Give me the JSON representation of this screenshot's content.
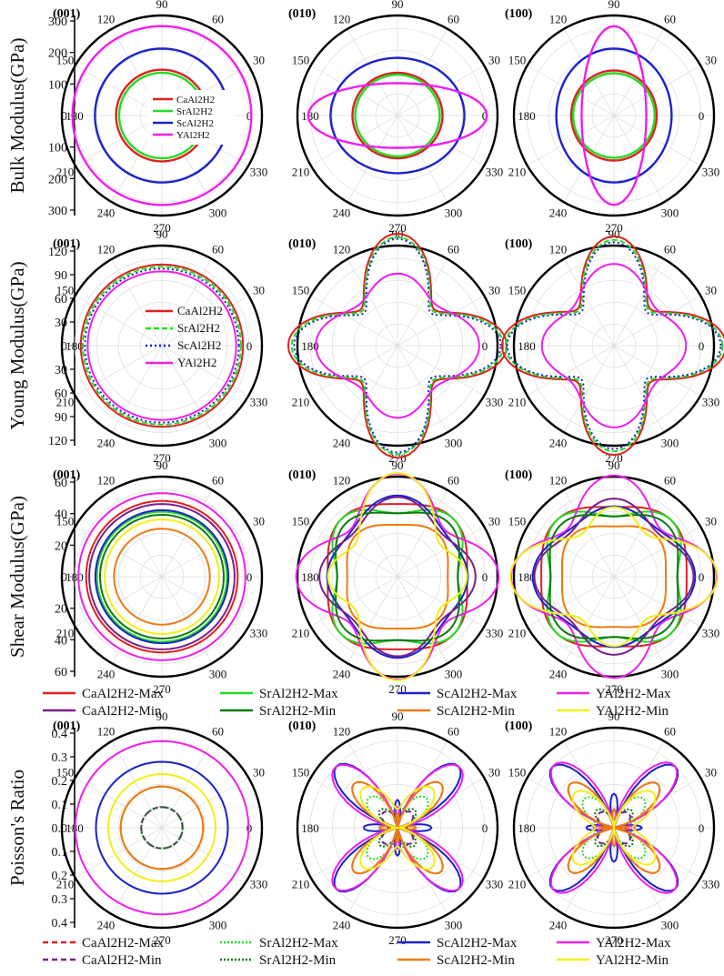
{
  "figure": {
    "angle_labels": [
      "0",
      "30",
      "60",
      "90",
      "120",
      "150",
      "180",
      "210",
      "240",
      "270",
      "300",
      "330"
    ],
    "panel_labels": [
      "(001)",
      "(010)",
      "(100)"
    ]
  },
  "colors": {
    "CaAl2H2": "#e02020",
    "SrAl2H2": "#22dd22",
    "ScAl2H2": "#1a22cc",
    "YAl2H2": "#ee1fee",
    "CaAl2H2_min": "#7a1f8a",
    "SrAl2H2_min": "#0a7a0a",
    "ScAl2H2_min": "#f07a10",
    "YAl2H2_min": "#f2ef16"
  },
  "chart_data": [
    {
      "type": "polar",
      "ylabel": "Bulk Modulus(GPa)",
      "axis_ticks": [
        "300",
        "200",
        "100",
        "0",
        "100",
        "200",
        "300"
      ],
      "rmax": 330,
      "legend": [
        "CaAl2H2",
        "SrAl2H2",
        "ScAl2H2",
        "YAl2H2"
      ],
      "panels": [
        {
          "plane": "(001)",
          "series": [
            {
              "name": "CaAl2H2",
              "r0": 163
            },
            {
              "name": "SrAl2H2",
              "r0": 152
            },
            {
              "name": "ScAl2H2",
              "r0": 238
            },
            {
              "name": "YAl2H2",
              "r0": 318
            }
          ]
        },
        {
          "plane": "(010)",
          "series": [
            {
              "name": "CaAl2H2",
              "a": 160,
              "b": 152
            },
            {
              "name": "SrAl2H2",
              "a": 150,
              "b": 145
            },
            {
              "name": "ScAl2H2",
              "a": 238,
              "b": 205
            },
            {
              "name": "YAl2H2",
              "a": 318,
              "b": 115
            }
          ]
        },
        {
          "plane": "(100)",
          "series": [
            {
              "name": "CaAl2H2",
              "a": 152,
              "b": 160
            },
            {
              "name": "SrAl2H2",
              "a": 145,
              "b": 150
            },
            {
              "name": "ScAl2H2",
              "a": 205,
              "b": 238
            },
            {
              "name": "YAl2H2",
              "a": 115,
              "b": 318
            }
          ]
        }
      ]
    },
    {
      "type": "polar",
      "ylabel": "Young Modulus(GPa)",
      "axis_ticks": [
        "120",
        "90",
        "60",
        "30",
        "0",
        "30",
        "60",
        "90",
        "120"
      ],
      "rmax": 135,
      "legend": [
        "CaAl2H2",
        "SrAl2H2",
        "ScAl2H2",
        "YAl2H2"
      ],
      "panels": [
        {
          "plane": "(001)",
          "series": [
            {
              "name": "CaAl2H2",
              "r0": 118
            },
            {
              "name": "SrAl2H2",
              "r0": 115
            },
            {
              "name": "ScAl2H2",
              "r0": 112
            },
            {
              "name": "YAl2H2",
              "r0": 108
            }
          ]
        },
        {
          "plane": "(010)",
          "series": [
            {
              "name": "CaAl2H2",
              "a0": 116,
              "a90": 120,
              "a45": 75
            },
            {
              "name": "SrAl2H2",
              "a0": 112,
              "a90": 116,
              "a45": 72
            },
            {
              "name": "ScAl2H2",
              "a0": 108,
              "a90": 113,
              "a45": 68
            },
            {
              "name": "YAl2H2",
              "a0": 104,
              "a90": 90,
              "a45": 82
            }
          ]
        },
        {
          "plane": "(100)",
          "series": [
            {
              "name": "CaAl2H2",
              "a0": 120,
              "a90": 116,
              "a45": 75
            },
            {
              "name": "SrAl2H2",
              "a0": 116,
              "a90": 112,
              "a45": 72
            },
            {
              "name": "ScAl2H2",
              "a0": 113,
              "a90": 108,
              "a45": 68
            },
            {
              "name": "YAl2H2",
              "a0": 90,
              "a90": 104,
              "a45": 82
            }
          ]
        }
      ]
    },
    {
      "type": "polar",
      "ylabel": "Shear Modulus(GPa)",
      "axis_ticks": [
        "60",
        "40",
        "20",
        "0",
        "20",
        "40",
        "60"
      ],
      "rmax": 60,
      "legend": [
        "CaAl2H2-Max",
        "SrAl2H2-Max",
        "ScAl2H2-Max",
        "YAl2H2-Max",
        "CaAl2H2-Min",
        "SrAl2H2-Min",
        "ScAl2H2-Min",
        "YAl2H2-Min"
      ],
      "panels": [
        {
          "plane": "(001)",
          "series": [
            {
              "name": "CaAl2H2-Max",
              "r0": 49
            },
            {
              "name": "SrAl2H2-Max",
              "r0": 42
            },
            {
              "name": "ScAl2H2-Max",
              "r0": 43
            },
            {
              "name": "YAl2H2-Max",
              "r0": 54
            },
            {
              "name": "CaAl2H2-Min",
              "r0": 47
            },
            {
              "name": "SrAl2H2-Min",
              "r0": 40
            },
            {
              "name": "ScAl2H2-Min",
              "r0": 31
            },
            {
              "name": "YAl2H2-Min",
              "r0": 37
            }
          ]
        },
        {
          "plane": "(010)",
          "series": [
            {
              "name": "CaAl2H2-Max",
              "a0": 48,
              "a90": 50,
              "a45": 52
            },
            {
              "name": "SrAl2H2-Max",
              "a0": 45,
              "a90": 47,
              "a45": 52
            },
            {
              "name": "ScAl2H2-Max",
              "a0": 42,
              "a90": 49,
              "a45": 42
            },
            {
              "name": "YAl2H2-Max",
              "a0": 54,
              "a90": 55,
              "a45": 43
            },
            {
              "name": "CaAl2H2-Min",
              "a0": 45,
              "a90": 46,
              "a45": 40
            },
            {
              "name": "SrAl2H2-Min",
              "a0": 43,
              "a90": 45,
              "a45": 48
            },
            {
              "name": "ScAl2H2-Min",
              "a0": 35,
              "a90": 36,
              "a45": 38
            },
            {
              "name": "YAl2H2-Min",
              "a0": 35,
              "a90": 57,
              "a45": 36
            }
          ]
        },
        {
          "plane": "(100)",
          "series": [
            {
              "name": "CaAl2H2-Max",
              "a0": 50,
              "a90": 48,
              "a45": 52
            },
            {
              "name": "SrAl2H2-Max",
              "a0": 47,
              "a90": 45,
              "a45": 52
            },
            {
              "name": "ScAl2H2-Max",
              "a0": 49,
              "a90": 42,
              "a45": 42
            },
            {
              "name": "YAl2H2-Max",
              "a0": 55,
              "a90": 54,
              "a45": 43
            },
            {
              "name": "CaAl2H2-Min",
              "a0": 46,
              "a90": 45,
              "a45": 40
            },
            {
              "name": "SrAl2H2-Min",
              "a0": 45,
              "a90": 43,
              "a45": 48
            },
            {
              "name": "ScAl2H2-Min",
              "a0": 36,
              "a90": 35,
              "a45": 38
            },
            {
              "name": "YAl2H2-Min",
              "a0": 57,
              "a90": 35,
              "a45": 36
            }
          ]
        }
      ]
    },
    {
      "type": "polar",
      "ylabel": "Poisson's Ratio",
      "axis_ticks": [
        "0.4",
        "0.3",
        "0.2",
        "0.1",
        "0.0",
        "0.1",
        "0.2",
        "0.3",
        "0.4"
      ],
      "rmax": 0.45,
      "legend": [
        "CaAl2H2-Max",
        "SrAl2H2-Max",
        "ScAl2H2-Max",
        "YAl2H2-Max",
        "CaAl2H2-Min",
        "SrAl2H2-Min",
        "ScAl2H2-Min",
        "YAl2H2-Min"
      ],
      "panels": [
        {
          "plane": "(001)",
          "series": [
            {
              "name": "CaAl2H2-Max",
              "r0": 0.2
            },
            {
              "name": "SrAl2H2-Max",
              "r0": 0.2
            },
            {
              "name": "ScAl2H2-Max",
              "r0": 0.32
            },
            {
              "name": "YAl2H2-Max",
              "r0": 0.42
            },
            {
              "name": "CaAl2H2-Min",
              "r0": 0.1
            },
            {
              "name": "SrAl2H2-Min",
              "r0": 0.1
            },
            {
              "name": "ScAl2H2-Min",
              "r0": 0.2
            },
            {
              "name": "YAl2H2-Min",
              "r0": 0.26
            }
          ]
        },
        {
          "plane": "(010)",
          "series": [
            {
              "name": "CaAl2H2-Max",
              "a0": 0.1,
              "a90": 0.12,
              "a45": 0.3
            },
            {
              "name": "SrAl2H2-Max",
              "a0": 0.11,
              "a90": 0.13,
              "a45": 0.2
            },
            {
              "name": "ScAl2H2-Max",
              "a0": 0.12,
              "a90": 0.15,
              "a45": 0.42
            },
            {
              "name": "YAl2H2-Max",
              "a0": 0.22,
              "a90": 0.14,
              "a45": 0.42
            },
            {
              "name": "CaAl2H2-Min",
              "a0": 0.07,
              "a90": 0.08,
              "a45": 0.1
            },
            {
              "name": "SrAl2H2-Min",
              "a0": 0.07,
              "a90": 0.08,
              "a45": 0.12
            },
            {
              "name": "ScAl2H2-Min",
              "a0": 0.1,
              "a90": 0.12,
              "a45": 0.3
            },
            {
              "name": "YAl2H2-Min",
              "a0": 0.08,
              "a90": 0.2,
              "a45": 0.25
            }
          ]
        },
        {
          "plane": "(100)",
          "series": [
            {
              "name": "CaAl2H2-Max",
              "a0": 0.12,
              "a90": 0.1,
              "a45": 0.3
            },
            {
              "name": "SrAl2H2-Max",
              "a0": 0.13,
              "a90": 0.11,
              "a45": 0.2
            },
            {
              "name": "ScAl2H2-Max",
              "a0": 0.15,
              "a90": 0.12,
              "a45": 0.42
            },
            {
              "name": "YAl2H2-Max",
              "a0": 0.14,
              "a90": 0.22,
              "a45": 0.42
            },
            {
              "name": "CaAl2H2-Min",
              "a0": 0.08,
              "a90": 0.07,
              "a45": 0.1
            },
            {
              "name": "SrAl2H2-Min",
              "a0": 0.08,
              "a90": 0.07,
              "a45": 0.12
            },
            {
              "name": "ScAl2H2-Min",
              "a0": 0.12,
              "a90": 0.1,
              "a45": 0.3
            },
            {
              "name": "YAl2H2-Min",
              "a0": 0.2,
              "a90": 0.08,
              "a45": 0.25
            }
          ]
        }
      ]
    }
  ]
}
